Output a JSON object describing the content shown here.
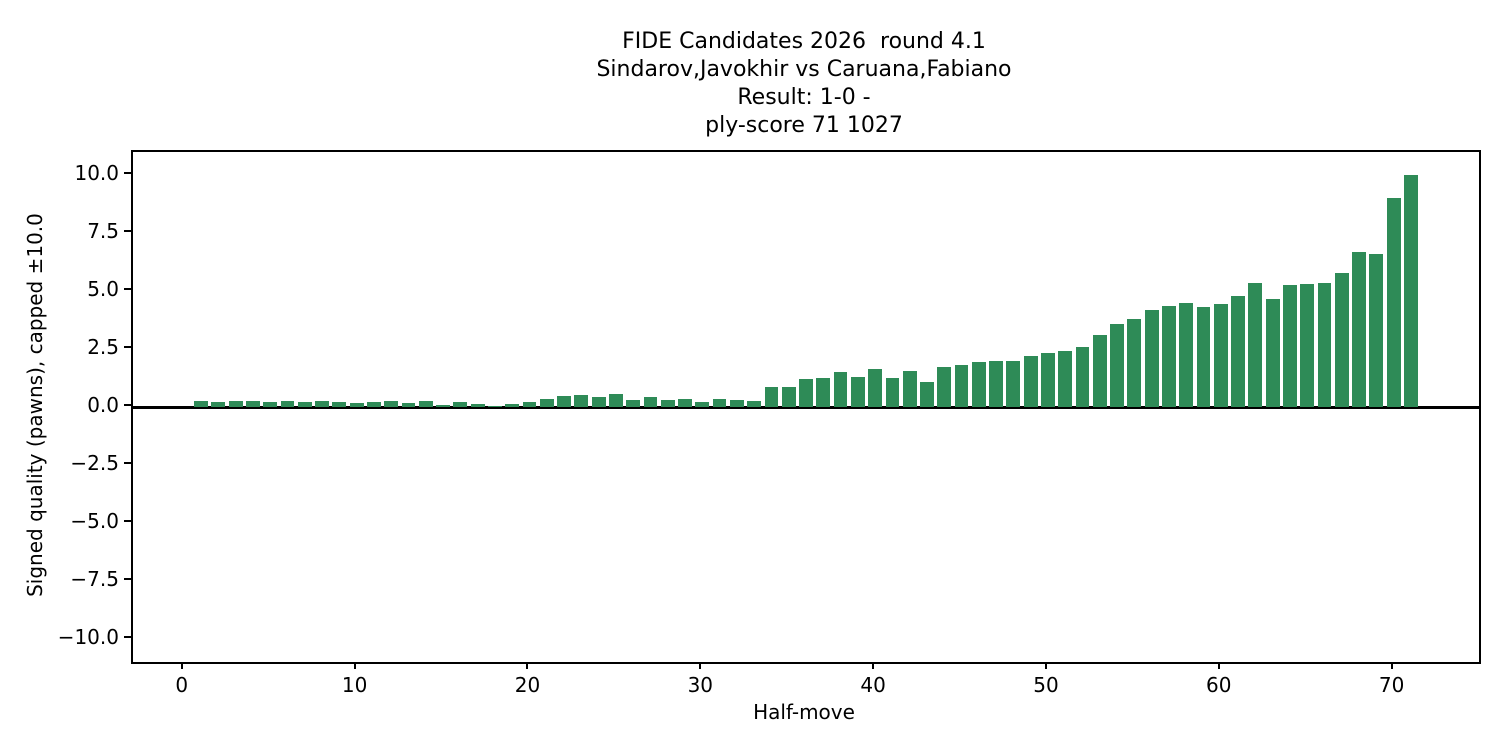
{
  "chart_data": {
    "type": "bar",
    "title_lines": [
      "FIDE Candidates 2026  round 4.1",
      "Sindarov,Javokhir vs Caruana,Fabiano",
      "Result: 1-0 -",
      "ply-score 71 1027"
    ],
    "xlabel": "Half-move",
    "ylabel": "Signed quality (pawns), capped ±10.0",
    "bar_color": "#2e8b57",
    "background_color": "#ffffff",
    "axis_color": "#000000",
    "grid": false,
    "legend": null,
    "x_start": 1,
    "values": [
      0.25,
      0.2,
      0.25,
      0.25,
      0.2,
      0.25,
      0.2,
      0.25,
      0.2,
      0.18,
      0.2,
      0.25,
      0.18,
      0.28,
      0.1,
      0.22,
      0.12,
      0.06,
      0.15,
      0.22,
      0.33,
      0.48,
      0.52,
      0.42,
      0.58,
      0.32,
      0.42,
      0.3,
      0.33,
      0.2,
      0.34,
      0.31,
      0.25,
      0.88,
      0.85,
      1.2,
      1.25,
      1.5,
      1.3,
      1.65,
      1.24,
      1.55,
      1.1,
      1.74,
      1.8,
      1.95,
      2.0,
      2.0,
      2.2,
      2.33,
      2.4,
      2.57,
      3.1,
      3.58,
      3.8,
      4.2,
      4.35,
      4.47,
      4.3,
      4.45,
      4.8,
      5.33,
      4.65,
      5.25,
      5.3,
      5.35,
      5.8,
      6.7,
      6.6,
      9.0,
      10.0
    ],
    "bar_width_units": 0.8,
    "xlim": [
      -2.94,
      74.94
    ],
    "ylim": [
      -11,
      11
    ],
    "xticks": [
      0,
      10,
      20,
      30,
      40,
      50,
      60,
      70
    ],
    "xtick_labels": [
      "0",
      "10",
      "20",
      "30",
      "40",
      "50",
      "60",
      "70"
    ],
    "ytick_values": [
      10,
      7.5,
      5,
      2.5,
      0,
      -2.5,
      -5,
      -7.5,
      -10
    ],
    "ytick_labels": [
      "10.0",
      "7.5",
      "5.0",
      "2.5",
      "0.0",
      "−2.5",
      "−5.0",
      "−7.5",
      "−10.0"
    ],
    "zero_line": 0
  }
}
